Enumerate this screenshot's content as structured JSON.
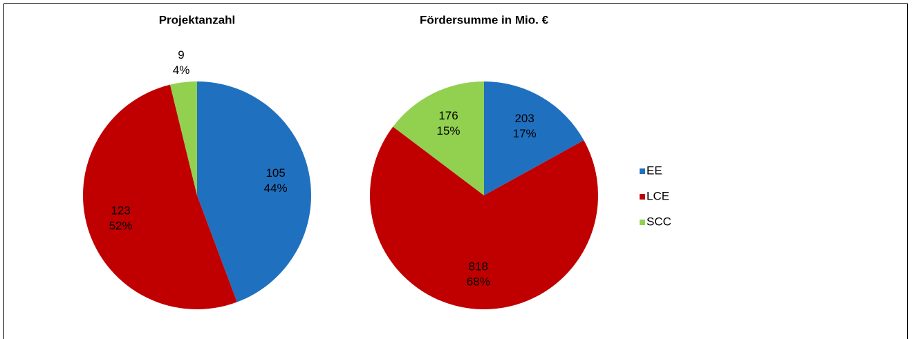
{
  "chart_data": [
    {
      "type": "pie",
      "title": "Projektanzahl",
      "categories": [
        "EE",
        "LCE",
        "SCC"
      ],
      "values": [
        105,
        123,
        9
      ],
      "value_labels": [
        "44%",
        "52%",
        "4%"
      ],
      "colors": [
        "#2070c0",
        "#c00000",
        "#92d050"
      ]
    },
    {
      "type": "pie",
      "title": "Fördersumme in Mio. €",
      "categories": [
        "EE",
        "LCE",
        "SCC"
      ],
      "values": [
        203,
        818,
        176
      ],
      "value_labels": [
        "17%",
        "68%",
        "15%"
      ],
      "colors": [
        "#2070c0",
        "#c00000",
        "#92d050"
      ],
      "legend": "right"
    }
  ]
}
